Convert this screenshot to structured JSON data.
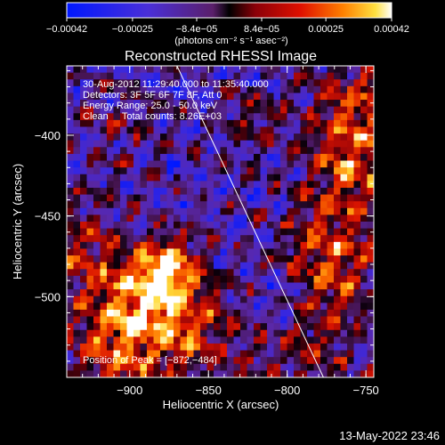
{
  "chart_data": {
    "type": "heatmap",
    "title": "Reconstructed RHESSI Image",
    "xlabel": "Heliocentric X (arcsec)",
    "ylabel": "Heliocentric Y (arcsec)",
    "xlim": [
      -940,
      -745
    ],
    "ylim": [
      -550,
      -357
    ],
    "x_ticks": [
      -900,
      -850,
      -800,
      -750
    ],
    "x_tick_labels": [
      "−900",
      "−850",
      "−800",
      "−750"
    ],
    "y_ticks": [
      -400,
      -450,
      -500
    ],
    "y_tick_labels": [
      "−400",
      "−450",
      "−500"
    ],
    "colorbar": {
      "range": [
        -0.00042,
        0.00042
      ],
      "ticks": [
        -0.00042,
        -0.00025,
        -8.4e-05,
        8.4e-05,
        0.00025,
        0.00042
      ],
      "tick_labels": [
        "−0.00042",
        "−0.00025",
        "−8.4e−05",
        "8.4e−05",
        "0.00025",
        "0.00042"
      ],
      "unit_label": "(photons cm⁻² s⁻¹ asec⁻²)",
      "colormap": "blue-purple-red-yellow-white"
    },
    "annotations": [
      "30-Aug-2012 11:29:40.000 to 11:35:40.000",
      "Detectors: 3F 5F 6F 7F 8F, Att 0",
      "Energy Range: 25.0 - 50.0 keV",
      "Clean     Total counts: 8.26E+03"
    ],
    "peak_label": "Position of Peak = [−872,−484]",
    "peak": [
      -872,
      -484
    ],
    "limb_line": {
      "from": [
        -870,
        -357
      ],
      "to": [
        -777,
        -550
      ]
    },
    "grid": false
  },
  "footer_timestamp": "13-May-2022 23:46"
}
